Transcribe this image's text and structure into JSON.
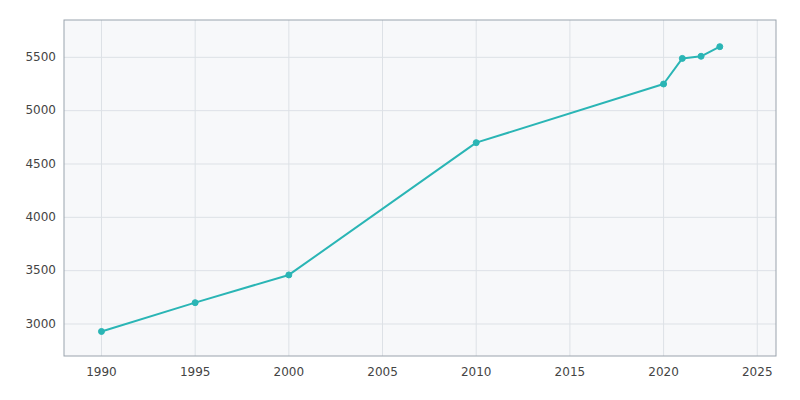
{
  "chart_data": {
    "type": "line",
    "x": [
      1990,
      1995,
      2000,
      2010,
      2020,
      2021,
      2022,
      2023
    ],
    "values": [
      2930,
      3200,
      3460,
      4700,
      5250,
      5490,
      5510,
      5600
    ],
    "color": "#2ab5b5",
    "marker": "circle",
    "xlim": [
      1988,
      2026
    ],
    "ylim": [
      2700,
      5850
    ],
    "xticks": [
      1990,
      1995,
      2000,
      2005,
      2010,
      2015,
      2020,
      2025
    ],
    "yticks": [
      3000,
      3500,
      4000,
      4500,
      5000,
      5500
    ],
    "grid": true
  }
}
